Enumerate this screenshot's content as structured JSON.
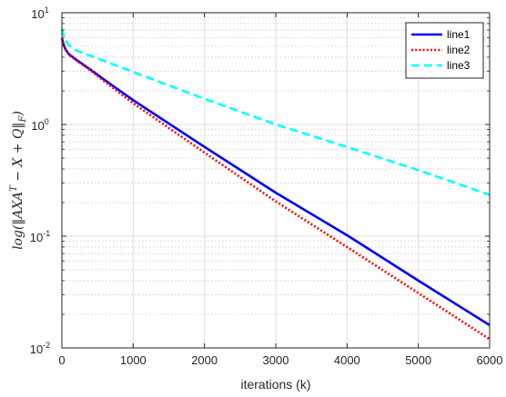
{
  "chart_data": {
    "type": "line",
    "title": "",
    "xlabel": "iterations (k)",
    "ylabel": "log(||AXA^T - X + Q||_F)",
    "ylabel_parts": [
      "log(",
      "‖",
      "AXA",
      "T",
      " − X + Q",
      "‖",
      "F",
      ")"
    ],
    "xlim": [
      0,
      6000
    ],
    "ylim": [
      0.01,
      10
    ],
    "yscale": "log",
    "grid": true,
    "minor_grid": true,
    "legend_position": "top-right",
    "x_ticks": [
      "0",
      "1000",
      "2000",
      "3000",
      "4000",
      "5000",
      "6000"
    ],
    "y_ticks": [
      {
        "base": "10",
        "exp": "-2"
      },
      {
        "base": "10",
        "exp": "-1"
      },
      {
        "base": "10",
        "exp": "0"
      },
      {
        "base": "10",
        "exp": "1"
      }
    ],
    "series": [
      {
        "name": "line1",
        "color": "#0000ff",
        "dash": "solid",
        "x": [
          0,
          20,
          50,
          100,
          200,
          400,
          600,
          1000,
          2000,
          3000,
          4000,
          5000,
          6000
        ],
        "y": [
          5.9,
          5.3,
          4.7,
          4.25,
          3.8,
          3.1,
          2.5,
          1.65,
          0.63,
          0.245,
          0.102,
          0.04,
          0.016
        ]
      },
      {
        "name": "line2",
        "color": "#ff0000",
        "dash": "dotted",
        "x": [
          0,
          20,
          50,
          100,
          200,
          400,
          600,
          1000,
          2000,
          3000,
          4000,
          5000,
          6000
        ],
        "y": [
          5.9,
          5.3,
          4.7,
          4.2,
          3.75,
          3.05,
          2.42,
          1.55,
          0.56,
          0.205,
          0.08,
          0.031,
          0.012
        ]
      },
      {
        "name": "line3",
        "color": "#00ffff",
        "dash": "dashed",
        "x": [
          0,
          20,
          50,
          100,
          200,
          500,
          1000,
          2000,
          3000,
          4000,
          5000,
          6000
        ],
        "y": [
          7.2,
          6.4,
          5.7,
          5.1,
          4.6,
          3.9,
          2.95,
          1.7,
          1.0,
          0.63,
          0.39,
          0.235
        ]
      }
    ]
  }
}
